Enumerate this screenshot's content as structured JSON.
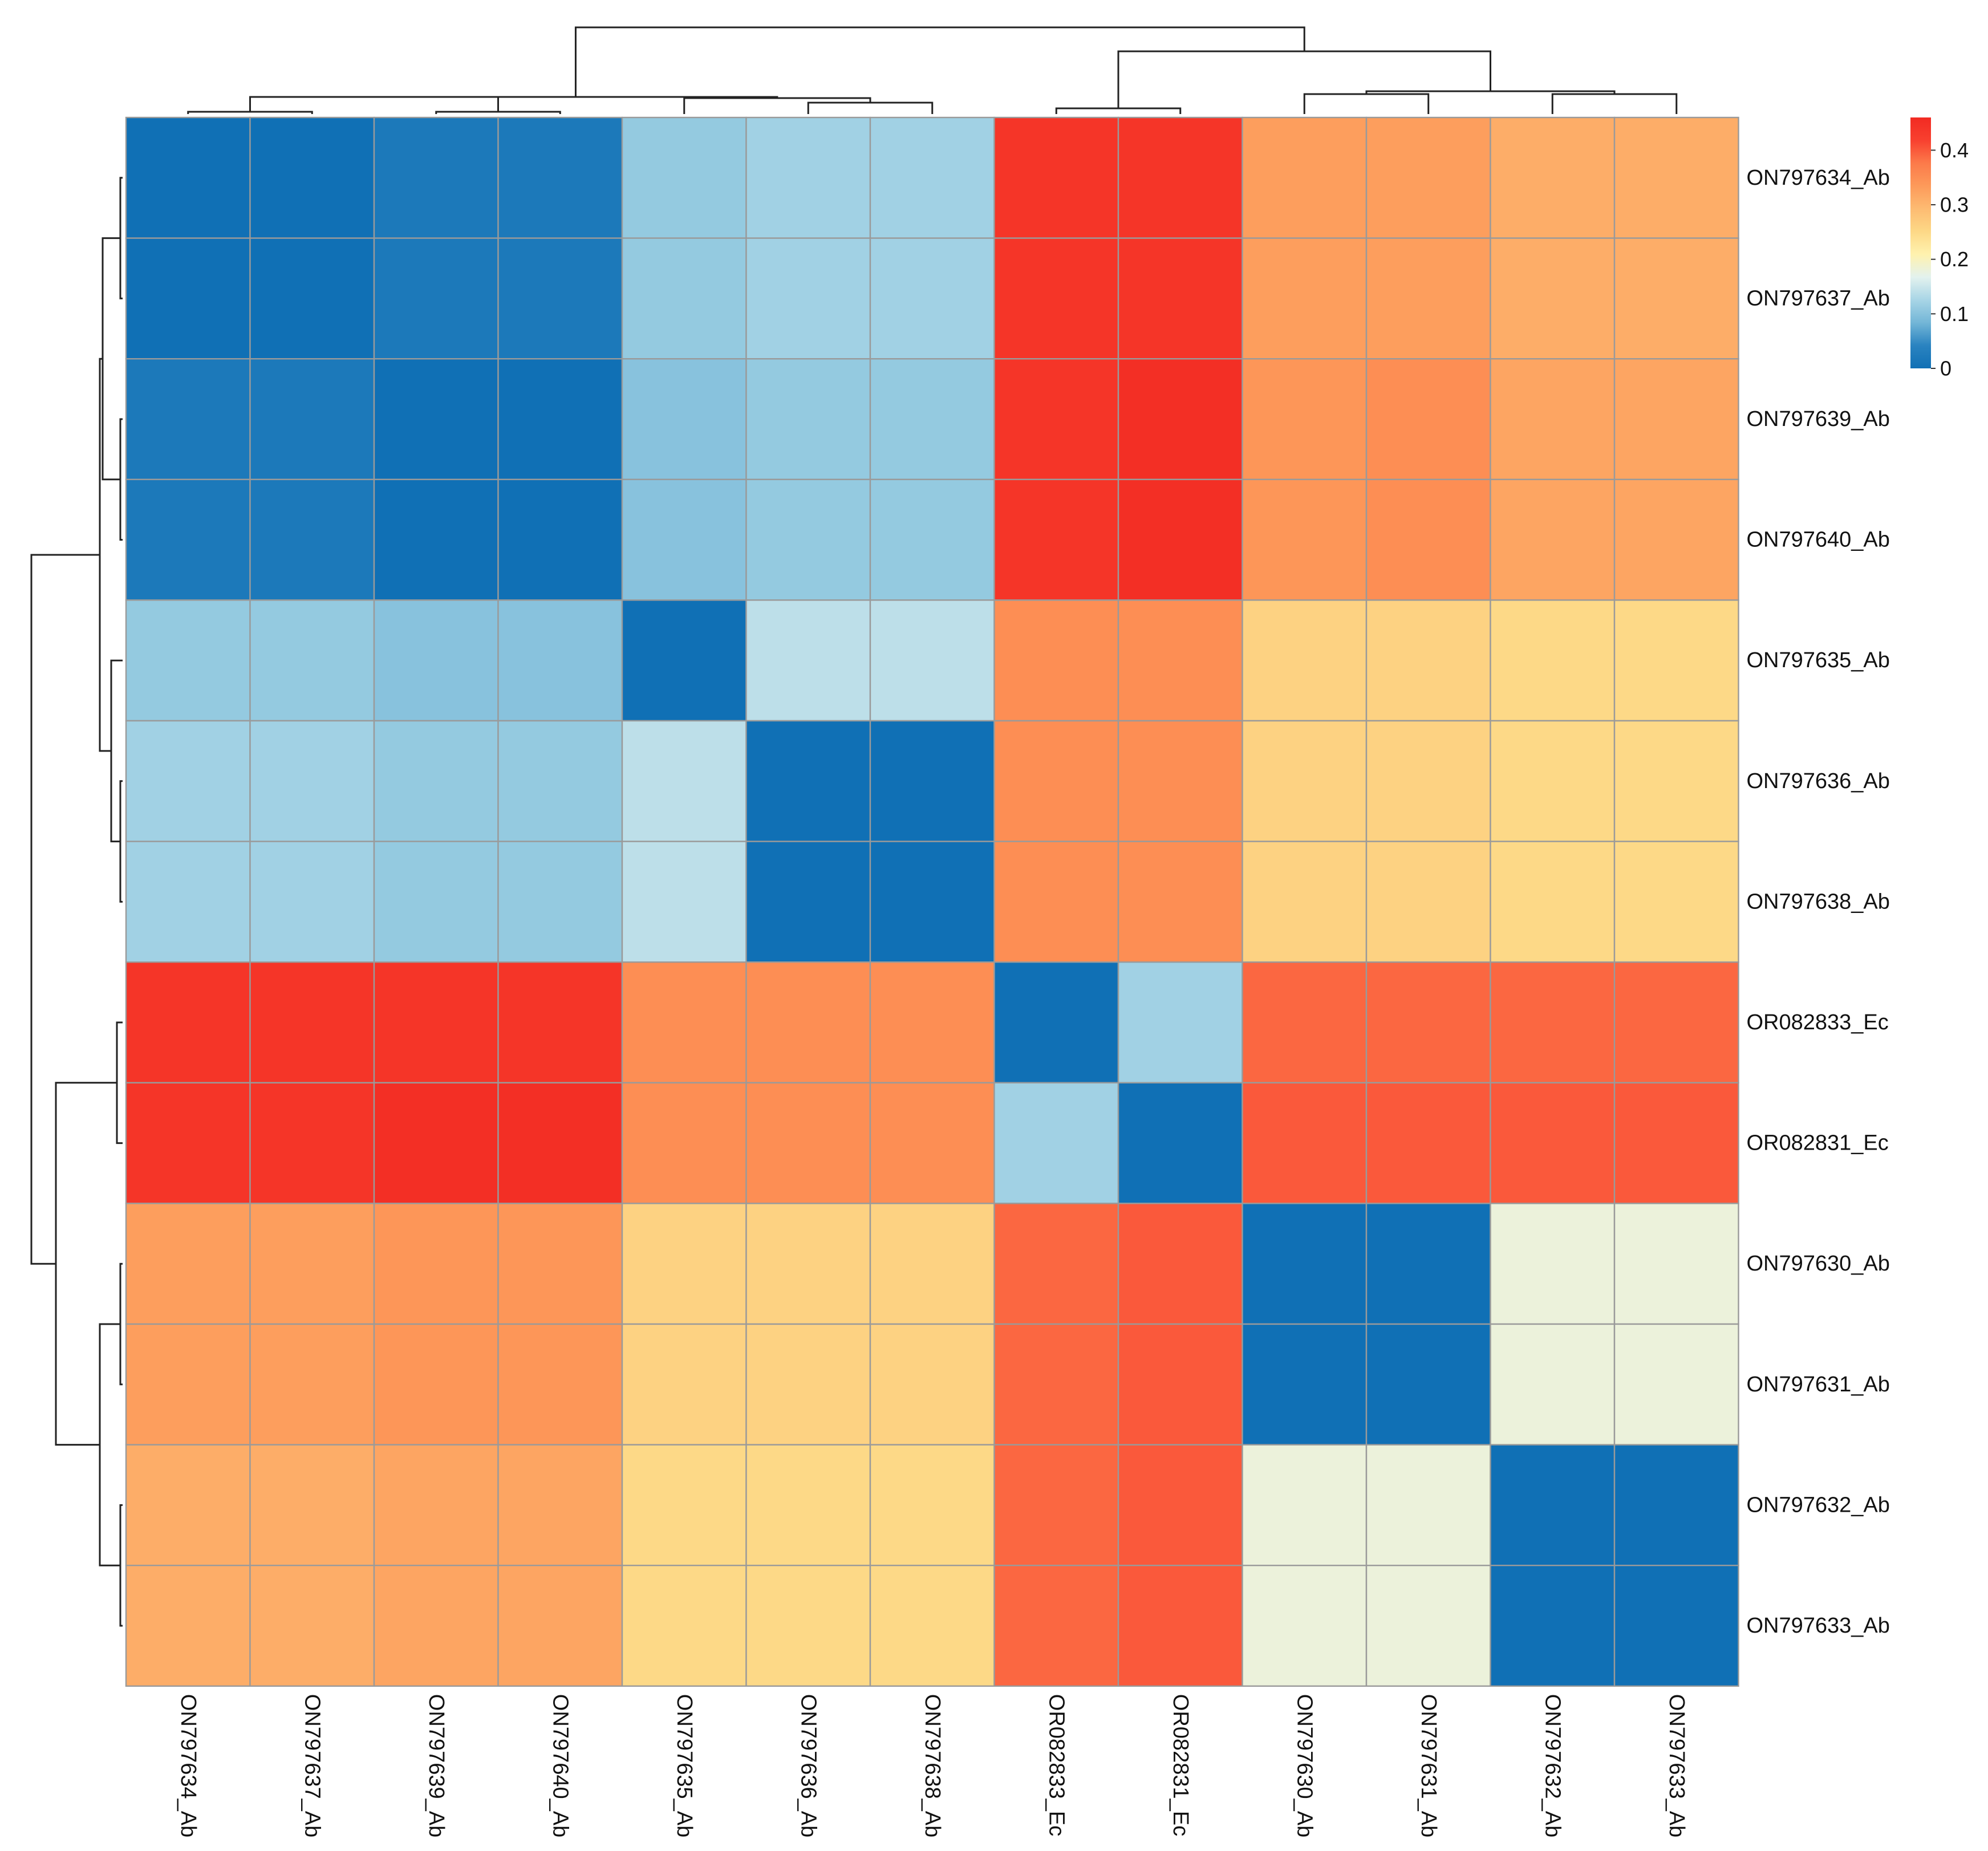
{
  "chart_data": {
    "type": "heatmap",
    "title": "",
    "row_labels": [
      "ON797634_Ab",
      "ON797637_Ab",
      "ON797639_Ab",
      "ON797640_Ab",
      "ON797635_Ab",
      "ON797636_Ab",
      "ON797638_Ab",
      "OR082833_Ec",
      "OR082831_Ec",
      "ON797630_Ab",
      "ON797631_Ab",
      "ON797632_Ab",
      "ON797633_Ab"
    ],
    "col_labels": [
      "ON797634_Ab",
      "ON797637_Ab",
      "ON797639_Ab",
      "ON797640_Ab",
      "ON797635_Ab",
      "ON797636_Ab",
      "ON797638_Ab",
      "OR082833_Ec",
      "OR082831_Ec",
      "ON797630_Ab",
      "ON797631_Ab",
      "ON797632_Ab",
      "ON797633_Ab"
    ],
    "values": [
      [
        0.0,
        0.0,
        0.02,
        0.02,
        0.11,
        0.12,
        0.12,
        0.44,
        0.44,
        0.33,
        0.33,
        0.31,
        0.31
      ],
      [
        0.0,
        0.0,
        0.02,
        0.02,
        0.11,
        0.12,
        0.12,
        0.44,
        0.44,
        0.33,
        0.33,
        0.31,
        0.31
      ],
      [
        0.02,
        0.02,
        0.0,
        0.0,
        0.1,
        0.11,
        0.11,
        0.44,
        0.45,
        0.34,
        0.35,
        0.32,
        0.32
      ],
      [
        0.02,
        0.02,
        0.0,
        0.0,
        0.1,
        0.11,
        0.11,
        0.44,
        0.45,
        0.34,
        0.35,
        0.32,
        0.32
      ],
      [
        0.11,
        0.11,
        0.1,
        0.1,
        0.0,
        0.14,
        0.14,
        0.35,
        0.35,
        0.26,
        0.26,
        0.25,
        0.25
      ],
      [
        0.12,
        0.12,
        0.11,
        0.11,
        0.14,
        0.0,
        0.0,
        0.35,
        0.35,
        0.26,
        0.26,
        0.25,
        0.25
      ],
      [
        0.12,
        0.12,
        0.11,
        0.11,
        0.14,
        0.0,
        0.0,
        0.35,
        0.35,
        0.26,
        0.26,
        0.25,
        0.25
      ],
      [
        0.44,
        0.44,
        0.44,
        0.44,
        0.35,
        0.35,
        0.35,
        0.0,
        0.12,
        0.39,
        0.39,
        0.39,
        0.39
      ],
      [
        0.44,
        0.44,
        0.45,
        0.45,
        0.35,
        0.35,
        0.35,
        0.12,
        0.0,
        0.4,
        0.4,
        0.4,
        0.4
      ],
      [
        0.33,
        0.33,
        0.34,
        0.34,
        0.26,
        0.26,
        0.26,
        0.39,
        0.4,
        0.0,
        0.0,
        0.18,
        0.18
      ],
      [
        0.33,
        0.33,
        0.34,
        0.34,
        0.26,
        0.26,
        0.26,
        0.39,
        0.4,
        0.0,
        0.0,
        0.18,
        0.18
      ],
      [
        0.31,
        0.31,
        0.32,
        0.32,
        0.25,
        0.25,
        0.25,
        0.39,
        0.4,
        0.18,
        0.18,
        0.0,
        0.0
      ],
      [
        0.31,
        0.31,
        0.32,
        0.32,
        0.25,
        0.25,
        0.25,
        0.39,
        0.4,
        0.18,
        0.18,
        0.0,
        0.0
      ]
    ],
    "value_range": [
      0,
      0.46
    ],
    "colorscale": [
      "#1070b5",
      "#2a83c0",
      "#73b6d7",
      "#a8d5e6",
      "#e3f2ee",
      "#fff2ae",
      "#fdd886",
      "#fdbb72",
      "#fd9a5a",
      "#fc7a4a",
      "#f8402f",
      "#f22a22"
    ],
    "legend": {
      "position": "top-right",
      "ticks": [
        0,
        0.1,
        0.2,
        0.3,
        0.4
      ],
      "tick_labels": [
        "0",
        "0.1",
        "0.2",
        "0.3",
        "0.4"
      ]
    },
    "grid": true,
    "dendrogram": {
      "column_tree": true,
      "row_tree": true
    }
  }
}
